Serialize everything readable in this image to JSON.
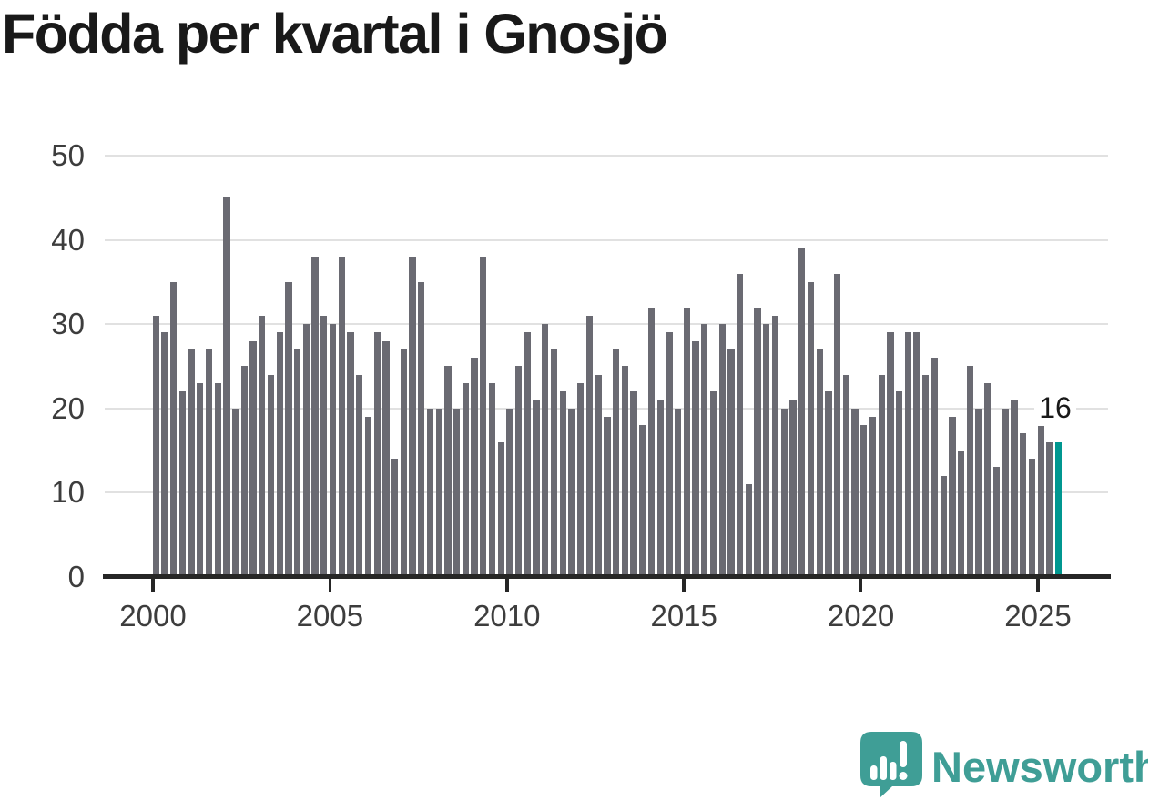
{
  "title": "Födda per kvartal i Gnosjö",
  "annotation": {
    "label": "16"
  },
  "branding": {
    "name": "Newsworthy"
  },
  "colors": {
    "bar": "#6a6a72",
    "highlight": "#009790",
    "grid": "#e1e1e1",
    "axis": "#262626",
    "text": "#3d3d3d",
    "title_text": "#191919",
    "logo": "#3f9e96"
  },
  "chart_data": {
    "type": "bar",
    "title": "Födda per kvartal i Gnosjö",
    "unit": "births per quarter",
    "start": {
      "year": 2000,
      "quarter": 1
    },
    "end": {
      "year": 2025,
      "quarter": 3
    },
    "values": [
      31,
      29,
      35,
      22,
      27,
      23,
      27,
      23,
      45,
      20,
      25,
      28,
      31,
      24,
      29,
      35,
      27,
      30,
      38,
      31,
      30,
      38,
      29,
      24,
      19,
      29,
      28,
      14,
      27,
      38,
      35,
      20,
      20,
      25,
      20,
      23,
      26,
      38,
      23,
      16,
      20,
      25,
      29,
      21,
      30,
      27,
      22,
      20,
      23,
      31,
      24,
      19,
      27,
      25,
      22,
      18,
      32,
      21,
      29,
      20,
      32,
      28,
      30,
      22,
      30,
      27,
      36,
      11,
      32,
      30,
      31,
      20,
      21,
      39,
      35,
      27,
      22,
      36,
      24,
      20,
      18,
      19,
      24,
      29,
      22,
      29,
      29,
      24,
      26,
      12,
      19,
      15,
      25,
      20,
      23,
      13,
      20,
      21,
      17,
      14,
      18,
      16,
      16
    ],
    "highlight_last": true,
    "last_value_label": "16",
    "x_tick_labels": [
      "2000",
      "2005",
      "2010",
      "2015",
      "2020",
      "2025"
    ],
    "x_tick_quarter_indices": [
      0,
      20,
      40,
      60,
      80,
      100
    ],
    "y_ticks": [
      0,
      10,
      20,
      30,
      40,
      50
    ],
    "ylim": [
      0,
      50
    ],
    "grid": "horizontal",
    "legend": "none"
  }
}
